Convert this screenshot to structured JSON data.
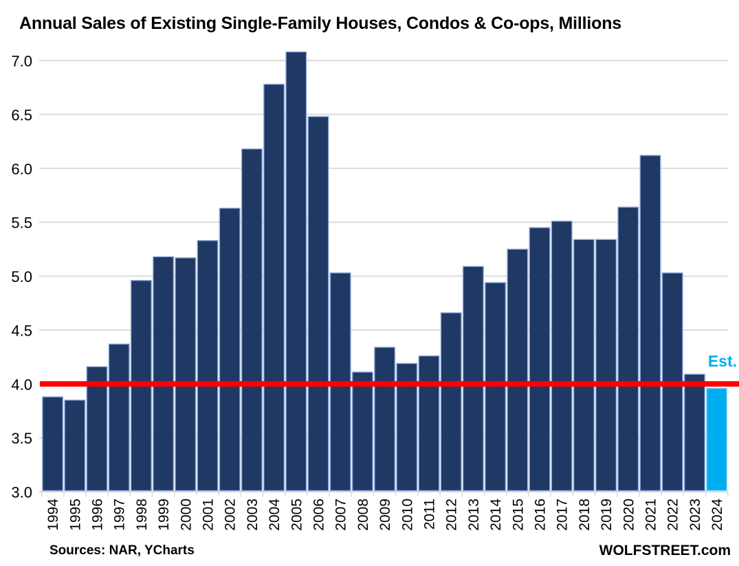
{
  "title": "Annual Sales of Existing Single-Family Houses, Condos & Co-ops, Millions",
  "footer": {
    "sources": "Sources: NAR, YCharts",
    "site": "WOLFSTREET.com"
  },
  "colors": {
    "bar": "#203964",
    "bar_stroke": "#8FAADC",
    "estimate_bar": "#00AEEF",
    "estimate_bar_stroke": "#9ADCF5",
    "reference_line": "#FF0000",
    "gridline": "#DBDBDB",
    "text": "#000000",
    "estimate_label": "#00AEEF"
  },
  "chart_data": {
    "type": "bar",
    "title": "Annual Sales of Existing Single-Family Houses, Condos & Co-ops, Millions",
    "categories": [
      "1994",
      "1995",
      "1996",
      "1997",
      "1998",
      "1999",
      "2000",
      "2001",
      "2002",
      "2003",
      "2004",
      "2005",
      "2006",
      "2007",
      "2008",
      "2009",
      "2010",
      "2011",
      "2012",
      "2013",
      "2014",
      "2015",
      "2016",
      "2017",
      "2018",
      "2019",
      "2020",
      "2021",
      "2022",
      "2023",
      "2024"
    ],
    "values": [
      3.88,
      3.85,
      4.16,
      4.37,
      4.96,
      5.18,
      5.17,
      5.33,
      5.63,
      6.18,
      6.78,
      7.08,
      6.48,
      5.03,
      4.11,
      4.34,
      4.19,
      4.26,
      4.66,
      5.09,
      4.94,
      5.25,
      5.45,
      5.51,
      5.34,
      5.34,
      5.64,
      6.12,
      5.03,
      4.09,
      3.96
    ],
    "estimate_index": 30,
    "estimate_label": "Est.",
    "reference_line_value": 4.0,
    "ylim": [
      3.0,
      7.0
    ],
    "y_ticks": [
      7.0,
      6.5,
      6.0,
      5.5,
      5.0,
      4.5,
      4.0,
      3.5,
      3.0
    ],
    "y_tick_labels": [
      "7.0",
      "6.5",
      "6.0",
      "5.5",
      "5.0",
      "4.5",
      "4.0",
      "3.5",
      "3.0"
    ],
    "grid": true,
    "legend_position": "none",
    "xlabel": "",
    "ylabel": ""
  }
}
